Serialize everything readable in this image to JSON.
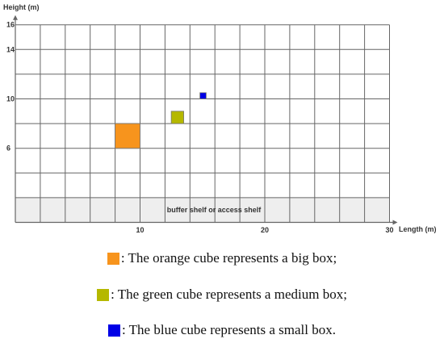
{
  "colors": {
    "big_box": "#f7941d",
    "medium_box": "#b5b800",
    "small_box": "#0000e6",
    "grid": "#666666",
    "buffer_fill": "#eeeeee"
  },
  "chart_data": {
    "type": "scatter",
    "xlabel": "Length (m)",
    "ylabel": "Height (m)",
    "xlim": [
      0,
      30
    ],
    "ylim": [
      2,
      16
    ],
    "x_ticks": [
      10,
      20,
      30
    ],
    "y_ticks": [
      6,
      10,
      14,
      16
    ],
    "grid": true,
    "buffer_label": "buffer shelf or access shelf",
    "boxes": [
      {
        "type": "big",
        "x0": 8,
        "x1": 10,
        "y0": 6,
        "y1": 8
      },
      {
        "type": "medium",
        "x0": 12.5,
        "x1": 13.5,
        "y0": 8,
        "y1": 9
      },
      {
        "type": "small",
        "x0": 14.8,
        "x1": 15.3,
        "y0": 10,
        "y1": 10.5
      }
    ]
  },
  "legend": [
    {
      "key": "big",
      "text": ": The orange cube represents a big box;"
    },
    {
      "key": "medium",
      "text": ": The green cube represents a medium box;"
    },
    {
      "key": "small",
      "text": ": The blue cube represents a small box."
    }
  ]
}
